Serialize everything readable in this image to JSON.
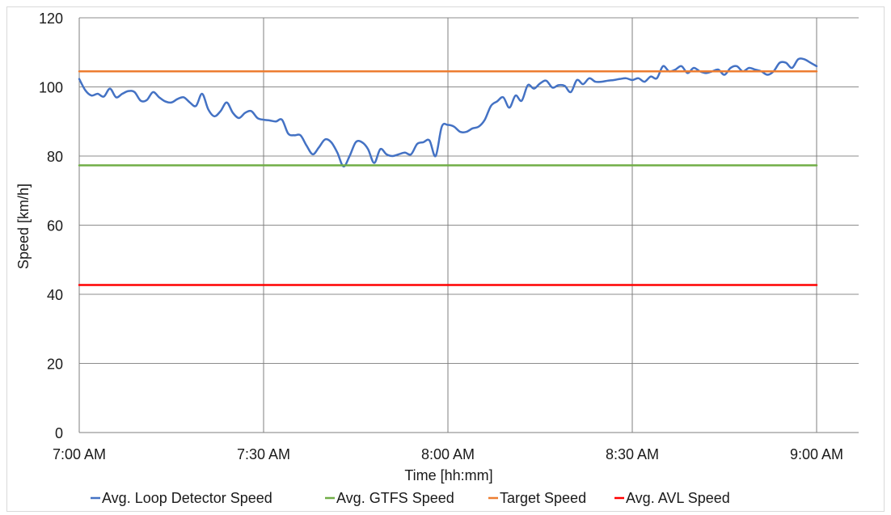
{
  "chart_data": {
    "type": "line",
    "xlabel": "Time [hh:mm]",
    "ylabel": "Speed [km/h]",
    "xlim": [
      0,
      120
    ],
    "ylim": [
      0,
      120
    ],
    "x_ticks": [
      {
        "value": 0,
        "label": "7:00 AM"
      },
      {
        "value": 30,
        "label": "7:30 AM"
      },
      {
        "value": 60,
        "label": "8:00 AM"
      },
      {
        "value": 90,
        "label": "8:30 AM"
      },
      {
        "value": 120,
        "label": "9:00 AM"
      }
    ],
    "y_ticks": [
      0,
      20,
      40,
      60,
      80,
      100,
      120
    ],
    "grid": true,
    "legend": "bottom",
    "series": [
      {
        "name": "Avg. Loop Detector Speed",
        "color": "#4472C4",
        "x": [
          0,
          1,
          2,
          3,
          4,
          5,
          6,
          7,
          8,
          9,
          10,
          11,
          12,
          13,
          14,
          15,
          16,
          17,
          18,
          19,
          20,
          21,
          22,
          23,
          24,
          25,
          26,
          27,
          28,
          29,
          30,
          31,
          32,
          33,
          34,
          35,
          36,
          37,
          38,
          39,
          40,
          41,
          42,
          43,
          44,
          45,
          46,
          47,
          48,
          49,
          50,
          51,
          52,
          53,
          54,
          55,
          56,
          57,
          58,
          59,
          60,
          61,
          62,
          63,
          64,
          65,
          66,
          67,
          68,
          69,
          70,
          71,
          72,
          73,
          74,
          75,
          76,
          77,
          78,
          79,
          80,
          81,
          82,
          83,
          84,
          85,
          86,
          87,
          88,
          89,
          90,
          91,
          92,
          93,
          94,
          95,
          96,
          97,
          98,
          99,
          100,
          101,
          102,
          103,
          104,
          105,
          106,
          107,
          108,
          109,
          110,
          111,
          112,
          113,
          114,
          115,
          116,
          117,
          118,
          119,
          120
        ],
        "values": [
          102.3,
          99.0,
          97.5,
          98.0,
          97.2,
          99.5,
          97.0,
          98.0,
          98.8,
          98.5,
          96.0,
          96.2,
          98.5,
          97.0,
          95.8,
          95.5,
          96.5,
          97.0,
          95.5,
          94.5,
          98.0,
          93.5,
          91.5,
          93.0,
          95.5,
          92.5,
          91.0,
          92.5,
          93.0,
          91.0,
          90.5,
          90.3,
          90.0,
          90.5,
          86.5,
          86.0,
          86.0,
          83.0,
          80.5,
          82.5,
          84.8,
          84.0,
          81.0,
          77.0,
          80.0,
          84.0,
          84.0,
          82.0,
          78.0,
          82.0,
          80.5,
          80.0,
          80.5,
          81.0,
          80.5,
          83.5,
          84.0,
          84.5,
          80.0,
          88.5,
          89.0,
          88.5,
          87.0,
          87.0,
          88.0,
          88.5,
          90.5,
          94.5,
          95.8,
          97.0,
          94.0,
          97.5,
          96.0,
          100.5,
          99.5,
          101.0,
          101.8,
          99.8,
          100.5,
          100.3,
          98.5,
          102.0,
          100.8,
          102.5,
          101.5,
          101.5,
          101.8,
          102.0,
          102.3,
          102.5,
          102.0,
          102.5,
          101.5,
          103.0,
          102.5,
          106.0,
          104.5,
          105.0,
          106.0,
          104.0,
          105.5,
          104.5,
          104.0,
          104.5,
          105.0,
          103.5,
          105.5,
          106.0,
          104.5,
          105.5,
          105.0,
          104.5,
          103.5,
          104.5,
          107.0,
          107.0,
          105.5,
          108.0,
          108.0,
          107.0,
          106.0
        ]
      },
      {
        "name": "Avg. GTFS Speed",
        "color": "#70AD47",
        "x": [
          0,
          120
        ],
        "values": [
          77.3,
          77.3
        ]
      },
      {
        "name": "Target Speed",
        "color": "#ED7D31",
        "x": [
          0,
          120
        ],
        "values": [
          104.5,
          104.5
        ]
      },
      {
        "name": "Avg. AVL Speed",
        "color": "#FF0000",
        "x": [
          0,
          120
        ],
        "values": [
          42.7,
          42.7
        ]
      }
    ]
  }
}
